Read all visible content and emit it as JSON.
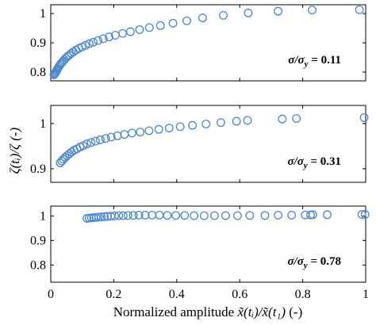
{
  "chart_data": {
    "type": "scatter",
    "xlabel_prefix": "Normalized amplitude ",
    "xlabel_math": "x̃(tᵢ)/x̃(t₁)",
    "xlabel_suffix": " (-)",
    "ylabel": "ζ(tᵢ)/ζ (-)",
    "marker_color": "#4a86cf",
    "xlim": [
      0,
      1
    ],
    "xticks": [
      "0",
      "0.2",
      "0.4",
      "0.6",
      "0.8",
      "1"
    ],
    "panels": [
      {
        "annotation": "σ/σ_y = 0.11",
        "annotation_parts": {
          "lhs_sigma": "σ",
          "lhs_rest": "/σ",
          "sub": "y",
          "rhs": " = 0.11"
        },
        "ylim": [
          0.77,
          1.03
        ],
        "yticks": [
          "0.8",
          "0.9",
          "1"
        ],
        "ytick_values": [
          0.8,
          0.9,
          1.0
        ],
        "x": [
          0.01,
          0.012,
          0.014,
          0.016,
          0.018,
          0.02,
          0.022,
          0.025,
          0.028,
          0.031,
          0.035,
          0.039,
          0.043,
          0.048,
          0.053,
          0.059,
          0.065,
          0.072,
          0.08,
          0.089,
          0.099,
          0.11,
          0.122,
          0.135,
          0.15,
          0.167,
          0.185,
          0.205,
          0.228,
          0.253,
          0.282,
          0.313,
          0.348,
          0.388,
          0.432,
          0.482,
          0.548,
          0.627,
          0.722,
          0.83,
          0.98
        ],
        "y": [
          0.791,
          0.793,
          0.796,
          0.8,
          0.804,
          0.808,
          0.812,
          0.817,
          0.822,
          0.827,
          0.832,
          0.837,
          0.842,
          0.848,
          0.853,
          0.858,
          0.864,
          0.869,
          0.875,
          0.881,
          0.886,
          0.891,
          0.897,
          0.902,
          0.908,
          0.914,
          0.92,
          0.926,
          0.932,
          0.938,
          0.945,
          0.952,
          0.959,
          0.967,
          0.975,
          0.985,
          0.994,
          1.002,
          1.008,
          1.012,
          1.013
        ]
      },
      {
        "annotation": "σ/σ_y = 0.31",
        "annotation_parts": {
          "lhs_sigma": "σ",
          "lhs_rest": "/σ",
          "sub": "y",
          "rhs": " = 0.31"
        },
        "ylim": [
          0.87,
          1.04
        ],
        "yticks": [
          "0.9",
          "1"
        ],
        "ytick_values": [
          0.9,
          1.0
        ],
        "x": [
          0.03,
          0.035,
          0.04,
          0.046,
          0.052,
          0.059,
          0.066,
          0.074,
          0.083,
          0.093,
          0.103,
          0.115,
          0.128,
          0.142,
          0.157,
          0.174,
          0.192,
          0.212,
          0.234,
          0.258,
          0.284,
          0.312,
          0.343,
          0.376,
          0.411,
          0.45,
          0.493,
          0.54,
          0.59,
          0.625,
          0.735,
          0.78,
          0.995
        ],
        "y": [
          0.913,
          0.917,
          0.921,
          0.925,
          0.929,
          0.933,
          0.937,
          0.941,
          0.944,
          0.948,
          0.951,
          0.955,
          0.958,
          0.961,
          0.964,
          0.967,
          0.97,
          0.973,
          0.976,
          0.979,
          0.981,
          0.984,
          0.987,
          0.99,
          0.993,
          0.996,
          0.999,
          1.002,
          1.005,
          1.007,
          1.01,
          1.011,
          1.013
        ]
      },
      {
        "annotation": "σ/σ_y = 0.78",
        "annotation_parts": {
          "lhs_sigma": "σ",
          "lhs_rest": "/σ",
          "sub": "y",
          "rhs": " = 0.78"
        },
        "ylim": [
          0.73,
          1.04
        ],
        "yticks": [
          "0.8",
          "0.9",
          "1"
        ],
        "ytick_values": [
          0.8,
          0.9,
          1.0
        ],
        "x": [
          0.115,
          0.122,
          0.129,
          0.136,
          0.144,
          0.152,
          0.16,
          0.17,
          0.18,
          0.191,
          0.203,
          0.216,
          0.23,
          0.245,
          0.262,
          0.28,
          0.3,
          0.322,
          0.345,
          0.37,
          0.397,
          0.425,
          0.455,
          0.487,
          0.52,
          0.555,
          0.593,
          0.632,
          0.68,
          0.722,
          0.765,
          0.808,
          0.825,
          0.832,
          0.878,
          0.988,
          0.998
        ],
        "y": [
          0.99,
          0.991,
          0.992,
          0.993,
          0.994,
          0.995,
          0.996,
          0.997,
          0.998,
          0.999,
          1.0,
          1.001,
          1.001,
          1.002,
          1.002,
          1.003,
          1.003,
          1.003,
          1.003,
          1.002,
          1.002,
          1.002,
          1.001,
          1.001,
          1.001,
          1.001,
          1.001,
          1.002,
          1.002,
          1.003,
          1.003,
          1.004,
          1.004,
          1.005,
          1.005,
          1.006,
          1.006
        ]
      }
    ],
    "grid": false,
    "legend": "none"
  }
}
